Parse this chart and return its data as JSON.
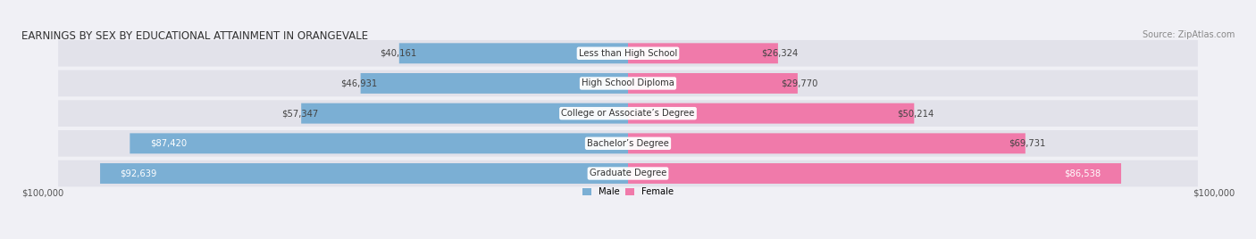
{
  "title": "EARNINGS BY SEX BY EDUCATIONAL ATTAINMENT IN ORANGEVALE",
  "source": "Source: ZipAtlas.com",
  "categories": [
    "Less than High School",
    "High School Diploma",
    "College or Associate’s Degree",
    "Bachelor’s Degree",
    "Graduate Degree"
  ],
  "male_values": [
    40161,
    46931,
    57347,
    87420,
    92639
  ],
  "female_values": [
    26324,
    29770,
    50214,
    69731,
    86538
  ],
  "male_color": "#7bafd4",
  "female_color": "#f07aaa",
  "bar_bg_color": "#e2e2ea",
  "max_value": 100000,
  "title_fontsize": 8.5,
  "source_fontsize": 7.0,
  "label_fontsize": 7.2,
  "value_fontsize": 7.2,
  "axis_label": "$100,000",
  "background_color": "#f0f0f5"
}
